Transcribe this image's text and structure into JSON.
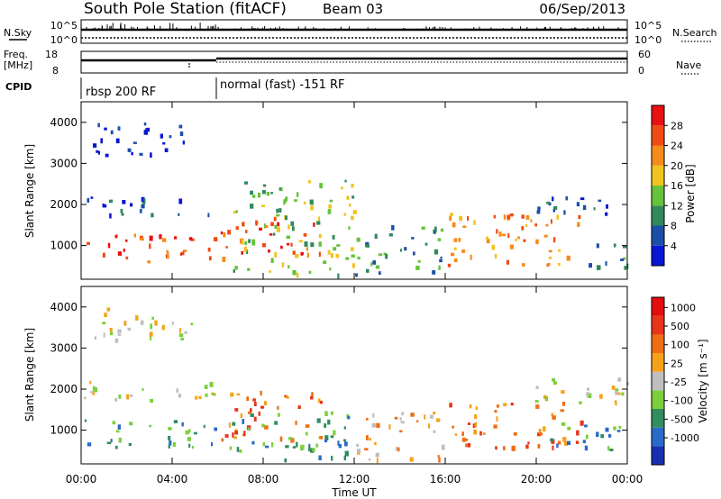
{
  "header": {
    "title": "South Pole Station (fitACF)",
    "beam": "Beam 03",
    "date": "06/Sep/2013"
  },
  "aux": {
    "nsky_label": "N.Sky",
    "nsearch_label": "N.Search",
    "freq_label": "Freq.",
    "freq_unit": "[MHz]",
    "nave_label": "Nave",
    "cpid_label": "CPID",
    "noise_ticks": [
      "10^5",
      "10^0"
    ],
    "freq_ticks": [
      "18",
      "8"
    ],
    "nave_ticks": [
      "60",
      "0"
    ],
    "cpid_segments": [
      {
        "label": "rbsp 200 RF",
        "start_hour": 0
      },
      {
        "label": "normal (fast) -151 RF",
        "start_hour": 6
      }
    ]
  },
  "axes": {
    "x_ticks": [
      "00:00",
      "04:00",
      "08:00",
      "12:00",
      "16:00",
      "20:00",
      "00:00"
    ],
    "x_label": "Time UT",
    "y_label": "Slant Range [km]",
    "y_ticks": [
      "1000",
      "2000",
      "3000",
      "4000"
    ]
  },
  "colorbars": {
    "power": {
      "label": "Power [dB]",
      "ticks": [
        "4",
        "8",
        "12",
        "16",
        "20",
        "24",
        "28"
      ],
      "colors": [
        "#0a14d4",
        "#1c4ea8",
        "#2e8a5a",
        "#66c23a",
        "#f2c21e",
        "#f58b1a",
        "#f04b14",
        "#e81010"
      ]
    },
    "velocity": {
      "label": "Velocity [m s⁻¹]",
      "ticks": [
        "1000",
        "500",
        "100",
        "25",
        "-25",
        "-100",
        "-500",
        "-1000"
      ],
      "colors": [
        "#1a2fb0",
        "#2a6ac8",
        "#2f8d60",
        "#7ccf3a",
        "#bfbfbf",
        "#f5a21a",
        "#ef6d14",
        "#e83418",
        "#e30d0d"
      ]
    }
  },
  "chart_data": [
    {
      "type": "heatmap",
      "name_hint": "power",
      "x_range_hours": [
        0,
        24
      ],
      "y_range_km": [
        180,
        4500
      ],
      "colorbar": "power",
      "regions": [
        {
          "t0": 0.1,
          "t1": 5.9,
          "r0": 600,
          "r1": 1300,
          "level": 6
        },
        {
          "t0": 6.0,
          "t1": 10.5,
          "r0": 700,
          "r1": 1700,
          "level": 6
        },
        {
          "t0": 0.1,
          "t1": 6.0,
          "r0": 1750,
          "r1": 2200,
          "level": 1
        },
        {
          "t0": 0.5,
          "t1": 5.0,
          "r0": 3200,
          "r1": 4000,
          "level": 0
        },
        {
          "t0": 6.5,
          "t1": 12.0,
          "r0": 300,
          "r1": 2600,
          "level": 3
        },
        {
          "t0": 12.0,
          "t1": 16.0,
          "r0": 300,
          "r1": 1500,
          "level": 2
        },
        {
          "t0": 16.0,
          "t1": 22.0,
          "r0": 500,
          "r1": 1800,
          "level": 5
        },
        {
          "t0": 19.5,
          "t1": 24.0,
          "r0": 1700,
          "r1": 2200,
          "level": 1
        },
        {
          "t0": 22.0,
          "t1": 24.0,
          "r0": 500,
          "r1": 1200,
          "level": 2
        }
      ]
    },
    {
      "type": "heatmap",
      "name_hint": "velocity",
      "x_range_hours": [
        0,
        24
      ],
      "y_range_km": [
        180,
        4500
      ],
      "colorbar": "velocity",
      "regions": [
        {
          "t0": 0.1,
          "t1": 5.9,
          "r0": 600,
          "r1": 1300,
          "level": 2
        },
        {
          "t0": 6.0,
          "t1": 10.5,
          "r0": 800,
          "r1": 2000,
          "level": 6
        },
        {
          "t0": 0.1,
          "t1": 6.0,
          "r0": 1700,
          "r1": 2200,
          "level": 4
        },
        {
          "t0": 0.5,
          "t1": 5.0,
          "r0": 3200,
          "r1": 4000,
          "level": 4
        },
        {
          "t0": 6.5,
          "t1": 12.0,
          "r0": 300,
          "r1": 1500,
          "level": 2
        },
        {
          "t0": 12.0,
          "t1": 16.0,
          "r0": 300,
          "r1": 1500,
          "level": 5
        },
        {
          "t0": 16.0,
          "t1": 22.0,
          "r0": 600,
          "r1": 1700,
          "level": 6
        },
        {
          "t0": 19.0,
          "t1": 24.0,
          "r0": 1700,
          "r1": 2300,
          "level": 4
        },
        {
          "t0": 20.5,
          "t1": 24.0,
          "r0": 500,
          "r1": 1200,
          "level": 2
        }
      ]
    }
  ]
}
